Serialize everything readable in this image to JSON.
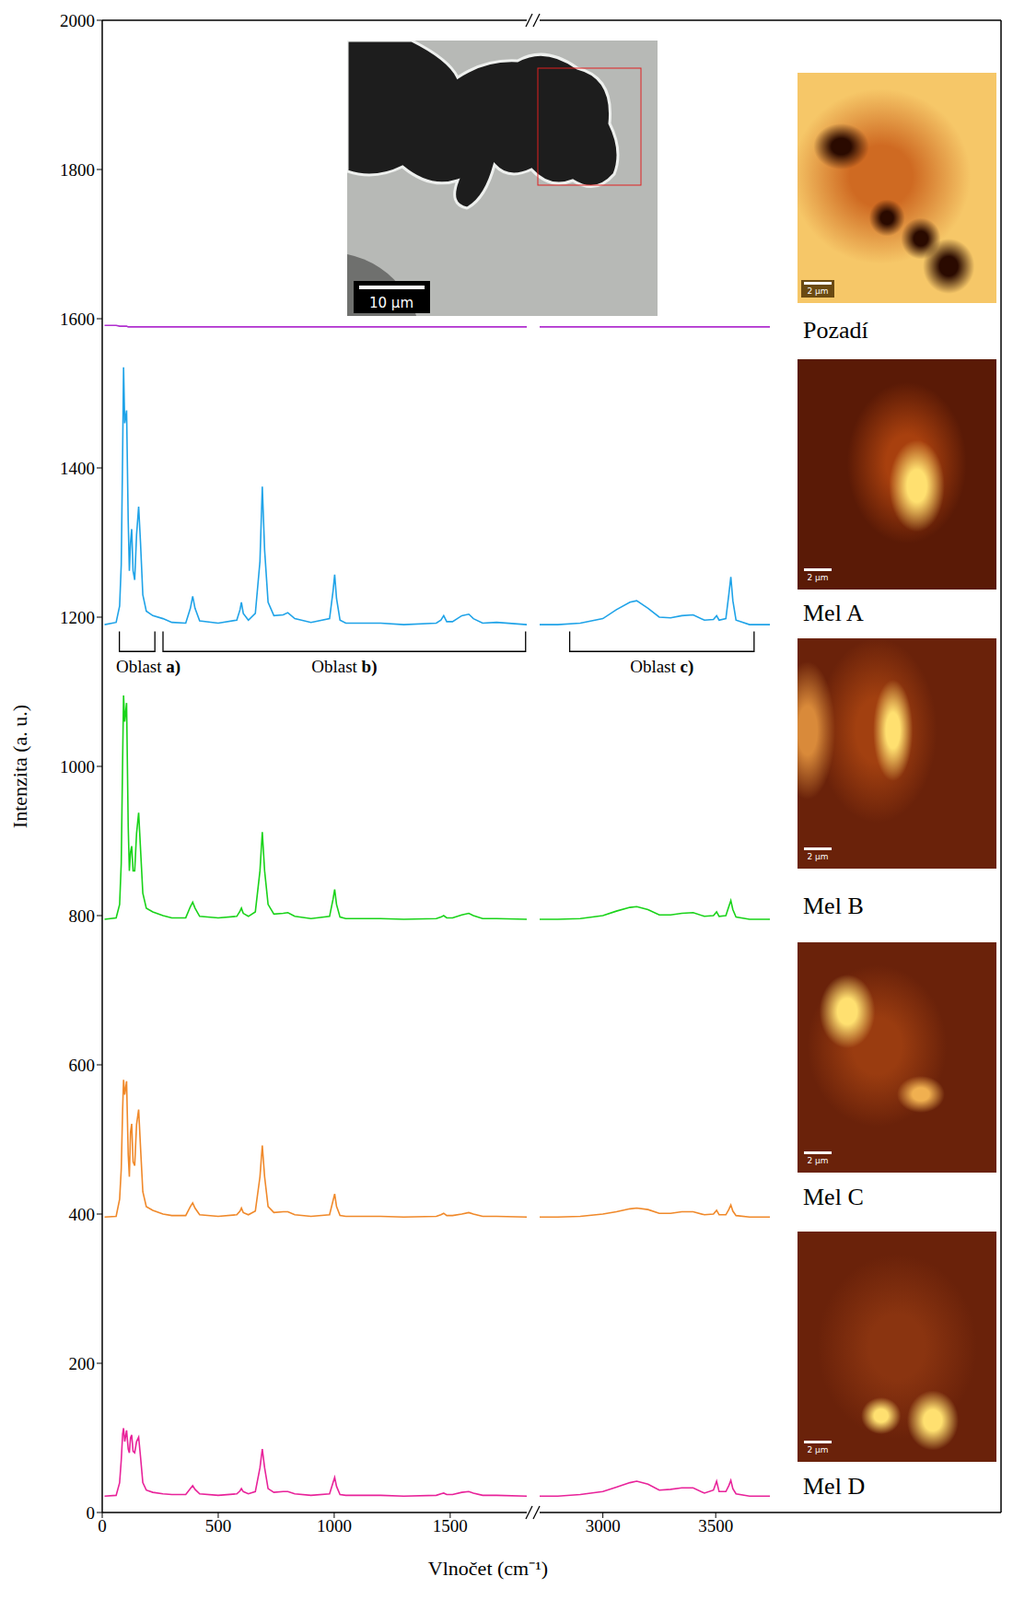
{
  "chart_data": {
    "type": "line",
    "x_label": "Vlnočet (cm⁻¹)",
    "y_label": "Intenzita (a. u.)",
    "x": [
      10,
      60,
      75,
      82,
      88,
      92,
      97,
      105,
      112,
      117,
      122,
      127,
      133,
      140,
      148,
      157,
      165,
      175,
      190,
      218,
      262,
      300,
      360,
      380,
      390,
      400,
      420,
      500,
      580,
      594,
      600,
      608,
      630,
      660,
      680,
      690,
      700,
      715,
      740,
      780,
      800,
      830,
      900,
      980,
      995,
      1002,
      1010,
      1025,
      1050,
      1200,
      1300,
      1440,
      1460,
      1472,
      1485,
      1510,
      1550,
      1580,
      1600,
      1640,
      1700,
      1830,
      2720,
      2800,
      2900,
      3000,
      3060,
      3120,
      3150,
      3200,
      3250,
      3300,
      3350,
      3400,
      3450,
      3490,
      3504,
      3515,
      3545,
      3558,
      3567,
      3576,
      3590,
      3650,
      3740
    ],
    "series": [
      {
        "name": "Pozadí",
        "color": "#b02fcf",
        "values": [
          1591,
          1591,
          1590,
          1590,
          1590,
          1590,
          1590,
          1590,
          1589,
          1589,
          1589,
          1589,
          1589,
          1589,
          1589,
          1589,
          1589,
          1589,
          1589,
          1589,
          1589,
          1589,
          1589,
          1589,
          1589,
          1589,
          1589,
          1589,
          1589,
          1589,
          1589,
          1589,
          1589,
          1589,
          1589,
          1589,
          1589,
          1589,
          1589,
          1589,
          1589,
          1589,
          1589,
          1589,
          1589,
          1589,
          1589,
          1589,
          1589,
          1589,
          1589,
          1589,
          1589,
          1589,
          1589,
          1589,
          1589,
          1589,
          1589,
          1589,
          1589,
          1589,
          1589,
          1589,
          1589,
          1589,
          1589,
          1589,
          1589,
          1589,
          1589,
          1589,
          1589,
          1589,
          1589,
          1589,
          1589,
          1589,
          1589,
          1589,
          1589,
          1589,
          1589,
          1589,
          1589
        ]
      },
      {
        "name": "Mel A",
        "color": "#1fa3e8",
        "values": [
          1190,
          1193,
          1215,
          1270,
          1420,
          1535,
          1460,
          1477,
          1330,
          1262,
          1300,
          1318,
          1262,
          1250,
          1310,
          1348,
          1300,
          1230,
          1208,
          1202,
          1198,
          1193,
          1192,
          1212,
          1228,
          1212,
          1195,
          1192,
          1196,
          1210,
          1220,
          1205,
          1196,
          1205,
          1275,
          1375,
          1290,
          1220,
          1202,
          1203,
          1206,
          1198,
          1193,
          1198,
          1235,
          1257,
          1225,
          1196,
          1192,
          1192,
          1190,
          1192,
          1196,
          1202,
          1194,
          1194,
          1202,
          1204,
          1198,
          1192,
          1193,
          1190,
          1190,
          1190,
          1192,
          1198,
          1210,
          1220,
          1222,
          1212,
          1200,
          1199,
          1202,
          1203,
          1196,
          1197,
          1202,
          1196,
          1198,
          1230,
          1254,
          1222,
          1196,
          1190,
          1190
        ]
      },
      {
        "name": "Mel B",
        "color": "#19d319",
        "values": [
          795,
          797,
          815,
          870,
          1010,
          1095,
          1060,
          1085,
          920,
          860,
          885,
          893,
          860,
          860,
          910,
          938,
          890,
          830,
          810,
          805,
          800,
          797,
          797,
          812,
          818,
          810,
          799,
          797,
          799,
          806,
          810,
          803,
          799,
          805,
          860,
          912,
          860,
          815,
          802,
          803,
          804,
          799,
          796,
          799,
          822,
          835,
          815,
          798,
          796,
          796,
          795,
          796,
          798,
          800,
          797,
          797,
          801,
          803,
          800,
          796,
          796,
          795,
          795,
          795,
          796,
          800,
          806,
          811,
          812,
          808,
          801,
          801,
          803,
          804,
          799,
          800,
          805,
          799,
          800,
          812,
          820,
          808,
          798,
          795,
          795
        ]
      },
      {
        "name": "Mel C",
        "color": "#f0892a",
        "values": [
          396,
          397,
          420,
          460,
          540,
          580,
          560,
          578,
          480,
          450,
          510,
          521,
          470,
          465,
          520,
          540,
          490,
          430,
          410,
          405,
          400,
          398,
          398,
          410,
          415,
          408,
          399,
          397,
          399,
          404,
          408,
          402,
          399,
          404,
          450,
          492,
          450,
          410,
          402,
          403,
          403,
          399,
          397,
          399,
          418,
          427,
          410,
          398,
          397,
          397,
          396,
          397,
          399,
          401,
          398,
          398,
          400,
          402,
          400,
          397,
          397,
          396,
          396,
          396,
          397,
          400,
          403,
          407,
          408,
          406,
          401,
          401,
          403,
          403,
          399,
          400,
          405,
          399,
          399,
          406,
          412,
          404,
          398,
          396,
          396
        ]
      },
      {
        "name": "Mel D",
        "color": "#e8239a",
        "values": [
          22,
          23,
          40,
          70,
          105,
          113,
          95,
          110,
          85,
          80,
          100,
          104,
          82,
          80,
          95,
          101,
          75,
          40,
          30,
          27,
          25,
          24,
          24,
          32,
          36,
          31,
          25,
          23,
          25,
          29,
          32,
          28,
          25,
          28,
          60,
          85,
          60,
          32,
          27,
          28,
          28,
          25,
          23,
          25,
          40,
          47,
          35,
          24,
          23,
          23,
          22,
          23,
          25,
          26,
          24,
          24,
          27,
          28,
          26,
          23,
          23,
          22,
          22,
          22,
          24,
          28,
          34,
          40,
          42,
          38,
          30,
          31,
          33,
          33,
          26,
          30,
          42,
          28,
          28,
          36,
          43,
          32,
          25,
          22,
          22
        ]
      }
    ],
    "xlim": [
      [
        0,
        1830
      ],
      [
        2720,
        3740
      ]
    ],
    "xticks": [
      0,
      500,
      1000,
      1500,
      3000,
      3500
    ],
    "ylim": [
      0,
      2000
    ],
    "yticks": [
      0,
      200,
      400,
      600,
      800,
      1000,
      1200,
      1400,
      1600,
      1800,
      2000
    ],
    "annotations": [
      {
        "text": "Oblast a)",
        "x": [
          74,
          227
        ],
        "y": [
          1154,
          1181
        ]
      },
      {
        "text": "Oblast b)",
        "x": [
          262,
          1825
        ],
        "y": [
          1154,
          1181
        ]
      },
      {
        "text": "Oblast c)",
        "x": [
          2853,
          3670
        ],
        "y": [
          1154,
          1181
        ]
      }
    ],
    "inset_scale_bar": "10 µm",
    "map_scale_bar": "2 µm"
  }
}
